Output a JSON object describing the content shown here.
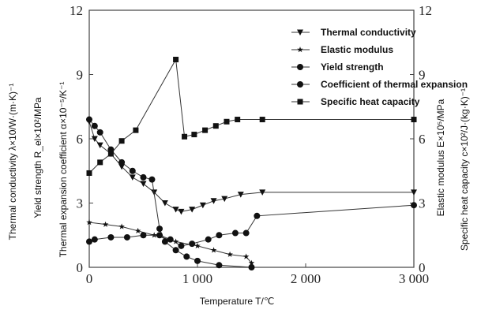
{
  "chart_data": {
    "type": "line",
    "xlabel": "Temperature T/℃",
    "xlim": [
      0,
      3000
    ],
    "ylim": [
      0,
      12
    ],
    "x_ticks": [
      "0",
      "1 000",
      "2 000",
      "3 000"
    ],
    "x_tick_values": [
      0,
      1000,
      2000,
      3000
    ],
    "y_ticks": [
      "0",
      "3",
      "6",
      "9",
      "12"
    ],
    "y_tick_values": [
      0,
      3,
      6,
      9,
      12
    ],
    "left_labels": [
      "Thermal conductivity λ×10/W·(m·K)⁻¹",
      "Yield strength R_el×10²/MPa",
      "Thermal expansion coefficient α×10⁻⁵/K⁻¹"
    ],
    "right_labels": [
      "Elastic modulus E×10⁵/MPa",
      "Specific heat capacity c×10²/J·(kg·K)⁻¹"
    ],
    "legend_position": "top-right",
    "series": [
      {
        "name": "Thermal conductivity",
        "marker": "triangle-down",
        "x": [
          0,
          50,
          100,
          200,
          300,
          400,
          500,
          600,
          700,
          800,
          850,
          950,
          1050,
          1150,
          1250,
          1400,
          1600,
          3000
        ],
        "y": [
          6.8,
          6.0,
          5.7,
          5.3,
          4.7,
          4.2,
          3.9,
          3.5,
          3.0,
          2.7,
          2.6,
          2.7,
          2.9,
          3.1,
          3.2,
          3.4,
          3.5,
          3.5
        ]
      },
      {
        "name": "Elastic modulus",
        "marker": "star",
        "x": [
          0,
          150,
          300,
          450,
          600,
          800,
          1000,
          1150,
          1300,
          1450,
          1500
        ],
        "y": [
          2.1,
          2.0,
          1.9,
          1.7,
          1.5,
          1.2,
          1.0,
          0.8,
          0.6,
          0.5,
          0.2
        ]
      },
      {
        "name": "Yield strength",
        "marker": "circle",
        "x": [
          0,
          50,
          100,
          200,
          300,
          400,
          500,
          580,
          650,
          700,
          800,
          900,
          1000,
          1200,
          1500
        ],
        "y": [
          6.9,
          6.6,
          6.3,
          5.5,
          4.9,
          4.5,
          4.2,
          4.1,
          1.8,
          1.2,
          0.8,
          0.5,
          0.3,
          0.1,
          0.0
        ]
      },
      {
        "name": "Coefficient of thermal expansion",
        "marker": "circle",
        "x": [
          0,
          50,
          200,
          350,
          500,
          650,
          750,
          850,
          950,
          1100,
          1200,
          1350,
          1450,
          1550,
          3000
        ],
        "y": [
          1.2,
          1.3,
          1.4,
          1.4,
          1.5,
          1.5,
          1.3,
          1.0,
          1.1,
          1.3,
          1.5,
          1.6,
          1.6,
          2.4,
          2.9
        ]
      },
      {
        "name": "Specific heat capacity",
        "marker": "square",
        "x": [
          0,
          100,
          200,
          300,
          430,
          800,
          880,
          970,
          1070,
          1170,
          1270,
          1370,
          1600,
          3000
        ],
        "y": [
          4.4,
          4.9,
          5.3,
          5.9,
          6.4,
          9.7,
          6.1,
          6.2,
          6.4,
          6.6,
          6.8,
          6.9,
          6.9,
          6.9
        ]
      }
    ]
  }
}
